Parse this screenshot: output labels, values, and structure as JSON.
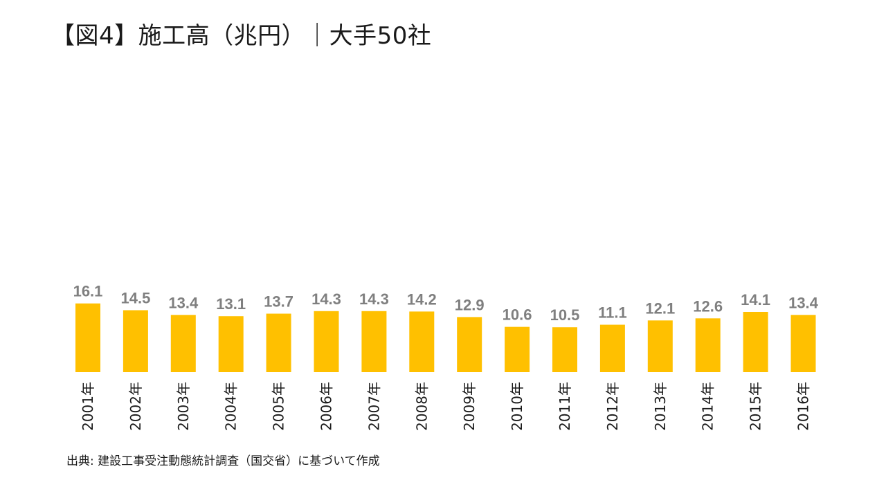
{
  "title": "【図4】施工高（兆円）｜大手50社",
  "source": "出典: 建設工事受注動態統計調査（国交省）に基づいて作成",
  "colors": {
    "bar": "#FFC000",
    "value_label": "#7f7f7f",
    "axis_label": "#1a1a1a"
  },
  "chart_data": {
    "type": "bar",
    "title": "【図4】施工高（兆円）｜大手50社",
    "xlabel": "",
    "ylabel": "",
    "categories": [
      "2001年",
      "2002年",
      "2003年",
      "2004年",
      "2005年",
      "2006年",
      "2007年",
      "2008年",
      "2009年",
      "2010年",
      "2011年",
      "2012年",
      "2013年",
      "2014年",
      "2015年",
      "2016年"
    ],
    "values": [
      16.1,
      14.5,
      13.4,
      13.1,
      13.7,
      14.3,
      14.3,
      14.2,
      12.9,
      10.6,
      10.5,
      11.1,
      12.1,
      12.6,
      14.1,
      13.4
    ],
    "value_labels": [
      "16.1",
      "14.5",
      "13.4",
      "13.1",
      "13.7",
      "14.3",
      "14.3",
      "14.2",
      "12.9",
      "10.6",
      "10.5",
      "11.1",
      "12.1",
      "12.6",
      "14.1",
      "13.4"
    ],
    "grid": false,
    "legend": "none"
  }
}
